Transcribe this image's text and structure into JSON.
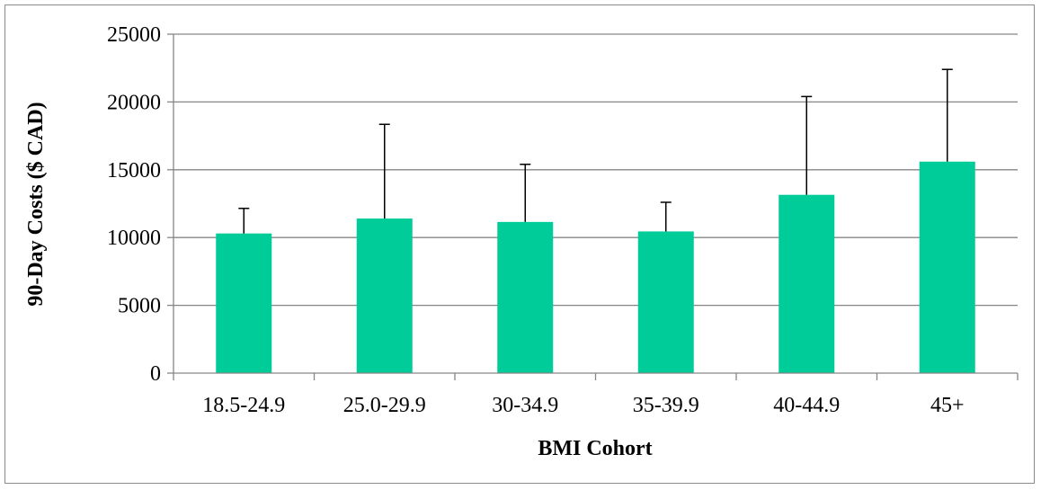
{
  "chart_data": {
    "type": "bar",
    "title": "",
    "xlabel": "BMI Cohort",
    "ylabel": "90-Day Costs ($ CAD)",
    "categories": [
      "18.5-24.9",
      "25.0-29.9",
      "30-34.9",
      "35-39.9",
      "40-44.9",
      "45+"
    ],
    "values": [
      10300,
      11400,
      11150,
      10450,
      13150,
      15600
    ],
    "error_upper": [
      1850,
      6950,
      4250,
      2150,
      7250,
      6800
    ],
    "ylim": [
      0,
      25000
    ],
    "yticks": [
      0,
      5000,
      10000,
      15000,
      20000,
      25000
    ],
    "grid": true,
    "legend": "none",
    "bar_color": "#00CC99",
    "grid_color": "#868686"
  }
}
